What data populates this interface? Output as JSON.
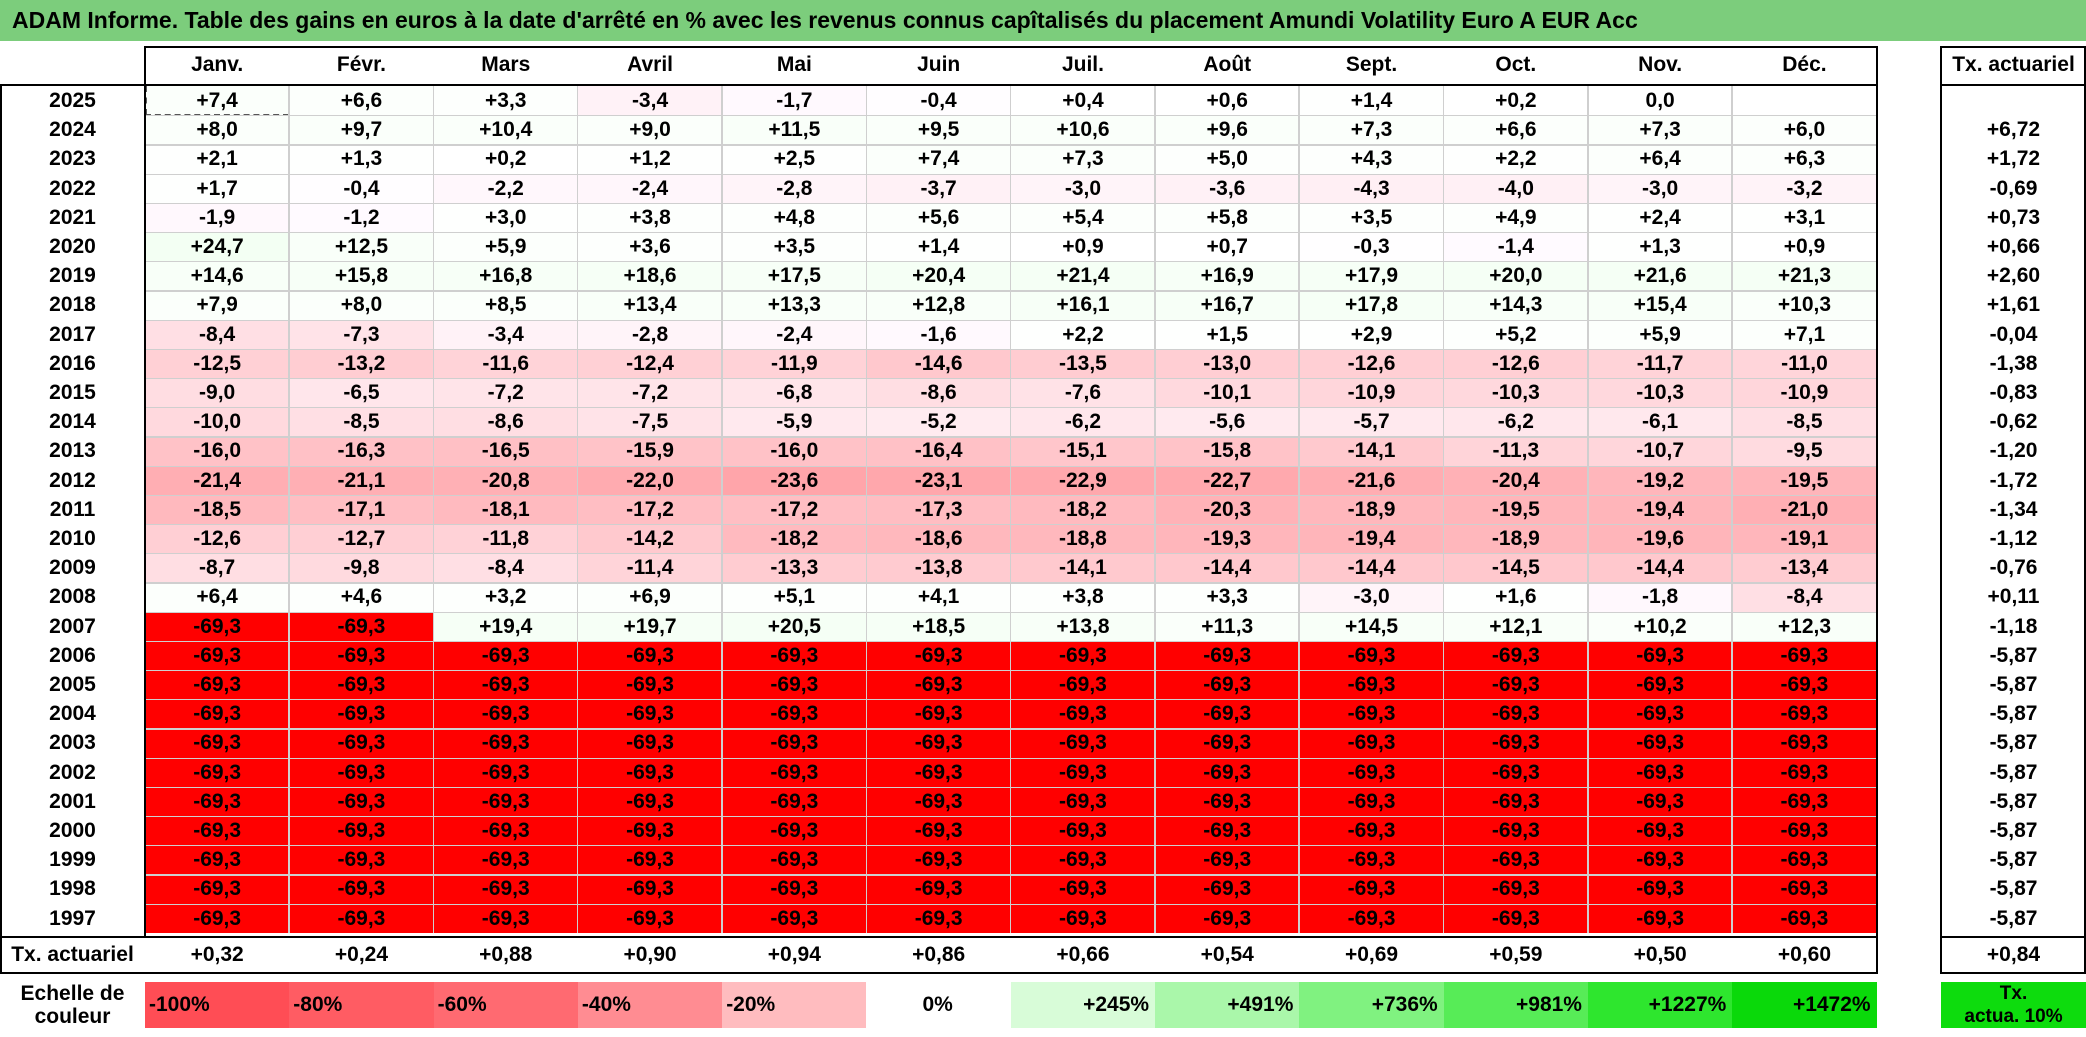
{
  "title": "ADAM Informe. Table des gains en euros à la date d'arrêté en % avec les revenus connus capîtalisés du placement Amundi Volatility Euro A EUR Acc",
  "months": [
    "Janv.",
    "Févr.",
    "Mars",
    "Avril",
    "Mai",
    "Juin",
    "Juil.",
    "Août",
    "Sept.",
    "Oct.",
    "Nov.",
    "Déc."
  ],
  "rate_label": "Tx. actuariel",
  "rows": [
    {
      "year": "2025",
      "v": [
        "+7,4",
        "+6,6",
        "+3,3",
        "-3,4",
        "-1,7",
        "-0,4",
        "+0,4",
        "+0,6",
        "+1,4",
        "+0,2",
        "0,0",
        ""
      ],
      "rate": ""
    },
    {
      "year": "2024",
      "v": [
        "+8,0",
        "+9,7",
        "+10,4",
        "+9,0",
        "+11,5",
        "+9,5",
        "+10,6",
        "+9,6",
        "+7,3",
        "+6,6",
        "+7,3",
        "+6,0"
      ],
      "rate": "+6,72"
    },
    {
      "year": "2023",
      "v": [
        "+2,1",
        "+1,3",
        "+0,2",
        "+1,2",
        "+2,5",
        "+7,4",
        "+7,3",
        "+5,0",
        "+4,3",
        "+2,2",
        "+6,4",
        "+6,3"
      ],
      "rate": "+1,72"
    },
    {
      "year": "2022",
      "v": [
        "+1,7",
        "-0,4",
        "-2,2",
        "-2,4",
        "-2,8",
        "-3,7",
        "-3,0",
        "-3,6",
        "-4,3",
        "-4,0",
        "-3,0",
        "-3,2"
      ],
      "rate": "-0,69"
    },
    {
      "year": "2021",
      "v": [
        "-1,9",
        "-1,2",
        "+3,0",
        "+3,8",
        "+4,8",
        "+5,6",
        "+5,4",
        "+5,8",
        "+3,5",
        "+4,9",
        "+2,4",
        "+3,1"
      ],
      "rate": "+0,73"
    },
    {
      "year": "2020",
      "v": [
        "+24,7",
        "+12,5",
        "+5,9",
        "+3,6",
        "+3,5",
        "+1,4",
        "+0,9",
        "+0,7",
        "-0,3",
        "-1,4",
        "+1,3",
        "+0,9"
      ],
      "rate": "+0,66"
    },
    {
      "year": "2019",
      "v": [
        "+14,6",
        "+15,8",
        "+16,8",
        "+18,6",
        "+17,5",
        "+20,4",
        "+21,4",
        "+16,9",
        "+17,9",
        "+20,0",
        "+21,6",
        "+21,3"
      ],
      "rate": "+2,60"
    },
    {
      "year": "2018",
      "v": [
        "+7,9",
        "+8,0",
        "+8,5",
        "+13,4",
        "+13,3",
        "+12,8",
        "+16,1",
        "+16,7",
        "+17,8",
        "+14,3",
        "+15,4",
        "+10,3"
      ],
      "rate": "+1,61"
    },
    {
      "year": "2017",
      "v": [
        "-8,4",
        "-7,3",
        "-3,4",
        "-2,8",
        "-2,4",
        "-1,6",
        "+2,2",
        "+1,5",
        "+2,9",
        "+5,2",
        "+5,9",
        "+7,1"
      ],
      "rate": "-0,04"
    },
    {
      "year": "2016",
      "v": [
        "-12,5",
        "-13,2",
        "-11,6",
        "-12,4",
        "-11,9",
        "-14,6",
        "-13,5",
        "-13,0",
        "-12,6",
        "-12,6",
        "-11,7",
        "-11,0"
      ],
      "rate": "-1,38"
    },
    {
      "year": "2015",
      "v": [
        "-9,0",
        "-6,5",
        "-7,2",
        "-7,2",
        "-6,8",
        "-8,6",
        "-7,6",
        "-10,1",
        "-10,9",
        "-10,3",
        "-10,3",
        "-10,9"
      ],
      "rate": "-0,83"
    },
    {
      "year": "2014",
      "v": [
        "-10,0",
        "-8,5",
        "-8,6",
        "-7,5",
        "-5,9",
        "-5,2",
        "-6,2",
        "-5,6",
        "-5,7",
        "-6,2",
        "-6,1",
        "-8,5"
      ],
      "rate": "-0,62"
    },
    {
      "year": "2013",
      "v": [
        "-16,0",
        "-16,3",
        "-16,5",
        "-15,9",
        "-16,0",
        "-16,4",
        "-15,1",
        "-15,8",
        "-14,1",
        "-11,3",
        "-10,7",
        "-9,5"
      ],
      "rate": "-1,20"
    },
    {
      "year": "2012",
      "v": [
        "-21,4",
        "-21,1",
        "-20,8",
        "-22,0",
        "-23,6",
        "-23,1",
        "-22,9",
        "-22,7",
        "-21,6",
        "-20,4",
        "-19,2",
        "-19,5"
      ],
      "rate": "-1,72"
    },
    {
      "year": "2011",
      "v": [
        "-18,5",
        "-17,1",
        "-18,1",
        "-17,2",
        "-17,2",
        "-17,3",
        "-18,2",
        "-20,3",
        "-18,9",
        "-19,5",
        "-19,4",
        "-21,0"
      ],
      "rate": "-1,34"
    },
    {
      "year": "2010",
      "v": [
        "-12,6",
        "-12,7",
        "-11,8",
        "-14,2",
        "-18,2",
        "-18,6",
        "-18,8",
        "-19,3",
        "-19,4",
        "-18,9",
        "-19,6",
        "-19,1"
      ],
      "rate": "-1,12"
    },
    {
      "year": "2009",
      "v": [
        "-8,7",
        "-9,8",
        "-8,4",
        "-11,4",
        "-13,3",
        "-13,8",
        "-14,1",
        "-14,4",
        "-14,4",
        "-14,5",
        "-14,4",
        "-13,4"
      ],
      "rate": "-0,76"
    },
    {
      "year": "2008",
      "v": [
        "+6,4",
        "+4,6",
        "+3,2",
        "+6,9",
        "+5,1",
        "+4,1",
        "+3,8",
        "+3,3",
        "-3,0",
        "+1,6",
        "-1,8",
        "-8,4"
      ],
      "rate": "+0,11"
    },
    {
      "year": "2007",
      "v": [
        "-69,3",
        "-69,3",
        "+19,4",
        "+19,7",
        "+20,5",
        "+18,5",
        "+13,8",
        "+11,3",
        "+14,5",
        "+12,1",
        "+10,2",
        "+12,3"
      ],
      "rate": "-1,18"
    },
    {
      "year": "2006",
      "v": [
        "-69,3",
        "-69,3",
        "-69,3",
        "-69,3",
        "-69,3",
        "-69,3",
        "-69,3",
        "-69,3",
        "-69,3",
        "-69,3",
        "-69,3",
        "-69,3"
      ],
      "rate": "-5,87"
    },
    {
      "year": "2005",
      "v": [
        "-69,3",
        "-69,3",
        "-69,3",
        "-69,3",
        "-69,3",
        "-69,3",
        "-69,3",
        "-69,3",
        "-69,3",
        "-69,3",
        "-69,3",
        "-69,3"
      ],
      "rate": "-5,87"
    },
    {
      "year": "2004",
      "v": [
        "-69,3",
        "-69,3",
        "-69,3",
        "-69,3",
        "-69,3",
        "-69,3",
        "-69,3",
        "-69,3",
        "-69,3",
        "-69,3",
        "-69,3",
        "-69,3"
      ],
      "rate": "-5,87"
    },
    {
      "year": "2003",
      "v": [
        "-69,3",
        "-69,3",
        "-69,3",
        "-69,3",
        "-69,3",
        "-69,3",
        "-69,3",
        "-69,3",
        "-69,3",
        "-69,3",
        "-69,3",
        "-69,3"
      ],
      "rate": "-5,87"
    },
    {
      "year": "2002",
      "v": [
        "-69,3",
        "-69,3",
        "-69,3",
        "-69,3",
        "-69,3",
        "-69,3",
        "-69,3",
        "-69,3",
        "-69,3",
        "-69,3",
        "-69,3",
        "-69,3"
      ],
      "rate": "-5,87"
    },
    {
      "year": "2001",
      "v": [
        "-69,3",
        "-69,3",
        "-69,3",
        "-69,3",
        "-69,3",
        "-69,3",
        "-69,3",
        "-69,3",
        "-69,3",
        "-69,3",
        "-69,3",
        "-69,3"
      ],
      "rate": "-5,87"
    },
    {
      "year": "2000",
      "v": [
        "-69,3",
        "-69,3",
        "-69,3",
        "-69,3",
        "-69,3",
        "-69,3",
        "-69,3",
        "-69,3",
        "-69,3",
        "-69,3",
        "-69,3",
        "-69,3"
      ],
      "rate": "-5,87"
    },
    {
      "year": "1999",
      "v": [
        "-69,3",
        "-69,3",
        "-69,3",
        "-69,3",
        "-69,3",
        "-69,3",
        "-69,3",
        "-69,3",
        "-69,3",
        "-69,3",
        "-69,3",
        "-69,3"
      ],
      "rate": "-5,87"
    },
    {
      "year": "1998",
      "v": [
        "-69,3",
        "-69,3",
        "-69,3",
        "-69,3",
        "-69,3",
        "-69,3",
        "-69,3",
        "-69,3",
        "-69,3",
        "-69,3",
        "-69,3",
        "-69,3"
      ],
      "rate": "-5,87"
    },
    {
      "year": "1997",
      "v": [
        "-69,3",
        "-69,3",
        "-69,3",
        "-69,3",
        "-69,3",
        "-69,3",
        "-69,3",
        "-69,3",
        "-69,3",
        "-69,3",
        "-69,3",
        "-69,3"
      ],
      "rate": "-5,87"
    }
  ],
  "footer": {
    "label": "Tx. actuariel",
    "values": [
      "+0,32",
      "+0,24",
      "+0,88",
      "+0,90",
      "+0,94",
      "+0,86",
      "+0,66",
      "+0,54",
      "+0,69",
      "+0,59",
      "+0,50",
      "+0,60"
    ],
    "total": "+0,84"
  },
  "color_scale": {
    "label_line1": "Echelle de",
    "label_line2": "couleur",
    "steps": [
      {
        "label": "-100%",
        "color": "#ff4d55"
      },
      {
        "label": "-80%",
        "color": "#ff5c63"
      },
      {
        "label": "-60%",
        "color": "#ff6a71"
      },
      {
        "label": "-40%",
        "color": "#ff8c92"
      },
      {
        "label": "-20%",
        "color": "#ffbcbf"
      },
      {
        "label": "0%",
        "color": "#ffffff"
      },
      {
        "label": "+245%",
        "color": "#d8fcd8"
      },
      {
        "label": "+491%",
        "color": "#aaf7aa"
      },
      {
        "label": "+736%",
        "color": "#80f280"
      },
      {
        "label": "+981%",
        "color": "#57ec57"
      },
      {
        "label": "+1227%",
        "color": "#2ee62e"
      },
      {
        "label": "+1472%",
        "color": "#0ad90a"
      }
    ],
    "rate_box_line1": "Tx.",
    "rate_box_line2": "actua. 10%",
    "rate_box_color": "#0ddc0d"
  }
}
